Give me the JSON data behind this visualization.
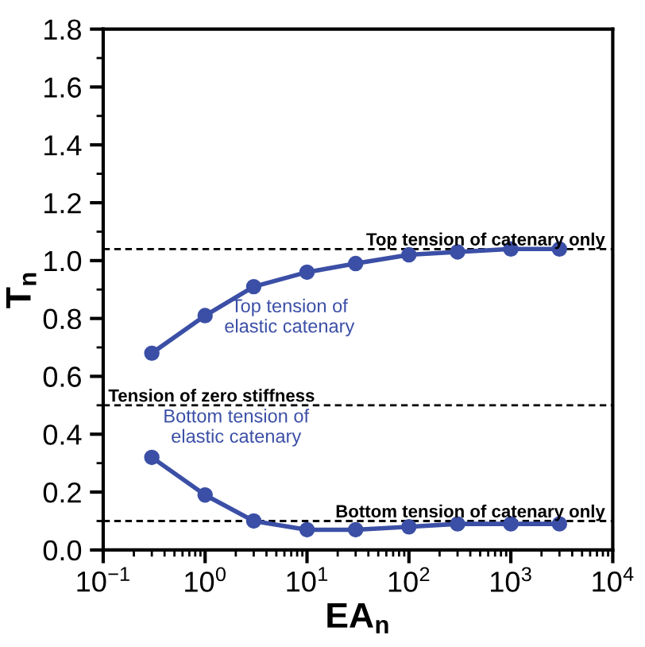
{
  "chart_data": {
    "type": "line",
    "xlabel": "EA$_{n}$",
    "ylabel": "T$_{n}$",
    "log": "x",
    "marker": "circle",
    "line_style": "solid",
    "grid": false,
    "legend": false,
    "xlim": [
      0.1,
      10000
    ],
    "xticks": [
      {
        "value": 0.1,
        "label": "10$^{−1}$"
      },
      {
        "value": 1,
        "label": "10$^{0}$"
      },
      {
        "value": 10,
        "label": "10$^{1}$"
      },
      {
        "value": 100,
        "label": "10$^{2}$"
      },
      {
        "value": 1000,
        "label": "10$^{3}$"
      },
      {
        "value": 10000,
        "label": "10$^{4}$"
      }
    ],
    "ylim": [
      0,
      1.8
    ],
    "yticks": [
      {
        "value": 0,
        "label": "0.0"
      },
      0.2,
      0.4,
      0.6,
      0.8,
      {
        "value": 1,
        "label": "1.0"
      },
      1.2,
      1.4,
      1.6,
      1.8
    ],
    "series": [
      {
        "name": "Top tension of\nelastic catenary",
        "color": "#3b4fa6",
        "x": [
          0.3,
          1,
          3,
          10,
          30,
          100,
          300,
          1000,
          3000
        ],
        "values": [
          0.68,
          0.81,
          0.91,
          0.96,
          0.99,
          1.02,
          1.03,
          1.04,
          1.04
        ]
      },
      {
        "name": "Bottom tension of\nelastic catenary",
        "color": "#3b4fa6",
        "x": [
          0.3,
          1,
          3,
          10,
          30,
          100,
          300,
          1000,
          3000
        ],
        "values": [
          0.32,
          0.19,
          0.1,
          0.07,
          0.07,
          0.08,
          0.09,
          0.09,
          0.09
        ]
      }
    ],
    "ref_lines": [
      {
        "axis": "y",
        "value": 1.04,
        "label": "Top tension of catenary only",
        "color": "#000000",
        "line_style": "dashed"
      },
      {
        "axis": "y",
        "value": 0.5,
        "label": "Tension of zero stiffness",
        "color": "#000000",
        "line_style": "dashed"
      },
      {
        "axis": "y",
        "value": 0.1,
        "label": "Bottom tension of catenary only",
        "color": "#000000",
        "line_style": "dashed"
      }
    ]
  }
}
